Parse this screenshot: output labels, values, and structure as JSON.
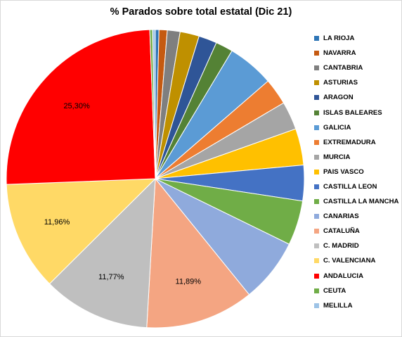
{
  "chart_data": {
    "type": "pie",
    "title": "% Parados sobre total estatal (Dic 21)",
    "categories": [
      "LA RIOJA",
      "NAVARRA",
      "CANTABRIA",
      "ASTURIAS",
      "ARAGON",
      "ISLAS BALEARES",
      "GALICIA",
      "EXTREMADURA",
      "MURCIA",
      "PAIS VASCO",
      "CASTILLA LEON",
      "CASTILLA LA MANCHA",
      "CANARIAS",
      "CATALUÑA",
      "C. MADRID",
      "C. VALENCIANA",
      "ANDALUCIA",
      "CEUTA",
      "MELILLA"
    ],
    "values": [
      0.4,
      0.9,
      1.4,
      2.1,
      2.0,
      1.9,
      5.1,
      2.9,
      3.1,
      4.0,
      3.9,
      4.9,
      7.0,
      11.89,
      11.77,
      11.96,
      25.3,
      0.3,
      0.3
    ],
    "colors": [
      "#2e75b6",
      "#c55a11",
      "#7f7f7f",
      "#bf9000",
      "#2f5597",
      "#548235",
      "#5b9bd5",
      "#ed7d31",
      "#a5a5a5",
      "#ffc000",
      "#4472c4",
      "#70ad47",
      "#8faadc",
      "#f4a582",
      "#bfbfbf",
      "#ffd966",
      "#ff0000",
      "#70ad47",
      "#9dc3e6"
    ],
    "data_labels": [
      "",
      "",
      "",
      "",
      "",
      "",
      "",
      "",
      "",
      "",
      "",
      "",
      "",
      "11,89%",
      "11,77%",
      "11,96%",
      "25,30%",
      "",
      ""
    ],
    "legend_position": "right"
  }
}
